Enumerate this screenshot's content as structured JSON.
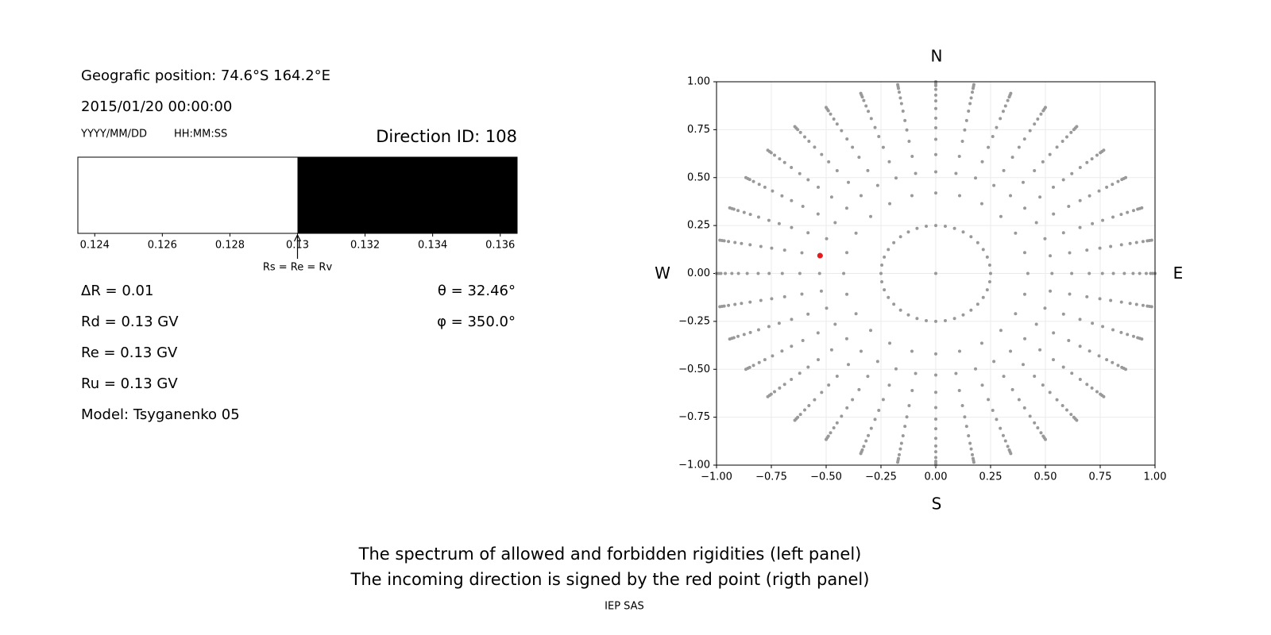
{
  "info": {
    "position": "Geografic position: 74.6°S 164.2°E",
    "datetime": "2015/01/20 00:00:00",
    "date_format": "YYYY/MM/DD",
    "time_format": "HH:MM:SS",
    "direction_id": "Direction ID: 108",
    "left_values": [
      "ΔR = 0.01",
      "Rd = 0.13 GV",
      "Re = 0.13 GV",
      "Ru = 0.13 GV",
      "Model: Tsyganenko 05"
    ],
    "right_values": [
      "θ = 32.46°",
      "φ = 350.0°"
    ]
  },
  "chart_data": [
    {
      "type": "spectrum",
      "xlim": [
        0.1235,
        0.1365
      ],
      "xticks": [
        0.124,
        0.126,
        0.128,
        0.13,
        0.132,
        0.134,
        0.136
      ],
      "segments": [
        {
          "color": "#ffffff",
          "range": [
            0.1235,
            0.13
          ]
        },
        {
          "color": "#000000",
          "range": [
            0.13,
            0.1365
          ]
        }
      ],
      "annotation": {
        "text": "Rs = Re = Rv",
        "x": 0.13
      }
    },
    {
      "type": "scatter",
      "xlim": [
        -1,
        1
      ],
      "ylim": [
        -1,
        1
      ],
      "grid": true,
      "xticks": [
        {
          "value": -1,
          "label": "−1.00"
        },
        {
          "value": -0.75,
          "label": "−0.75"
        },
        {
          "value": -0.5,
          "label": "−0.50"
        },
        {
          "value": -0.25,
          "label": "−0.25"
        },
        {
          "value": 0,
          "label": "0.00"
        },
        {
          "value": 0.25,
          "label": "0.25"
        },
        {
          "value": 0.5,
          "label": "0.50"
        },
        {
          "value": 0.75,
          "label": "0.75"
        },
        {
          "value": 1,
          "label": "1.00"
        }
      ],
      "yticks": [
        {
          "value": -1,
          "label": "−1.00"
        },
        {
          "value": -0.75,
          "label": "−0.75"
        },
        {
          "value": -0.5,
          "label": "−0.50"
        },
        {
          "value": -0.25,
          "label": "−0.25"
        },
        {
          "value": 0,
          "label": "0.00"
        },
        {
          "value": 0.25,
          "label": "0.25"
        },
        {
          "value": 0.5,
          "label": "0.50"
        },
        {
          "value": 0.75,
          "label": "0.75"
        },
        {
          "value": 1,
          "label": "1.00"
        }
      ],
      "compass": {
        "north": "N",
        "south": "S",
        "west": "W",
        "east": "E"
      },
      "polar_points": {
        "color": "#999999",
        "groups": [
          {
            "radii": [
              0
            ],
            "azimuths": [
              0
            ]
          },
          {
            "radii": [
              0.25
            ],
            "azimuths": [
              0,
              10,
              20,
              30,
              40,
              50,
              60,
              70,
              80,
              90,
              100,
              110,
              120,
              130,
              140,
              150,
              160,
              170,
              180,
              190,
              200,
              210,
              220,
              230,
              240,
              250,
              260,
              270,
              280,
              290,
              300,
              310,
              320,
              330,
              340,
              350
            ]
          },
          {
            "radii": [
              0.42
            ],
            "azimuths": [
              0,
              15,
              30,
              45,
              60,
              75,
              90,
              105,
              120,
              135,
              150,
              165,
              180,
              195,
              210,
              225,
              240,
              255,
              270,
              285,
              300,
              315,
              330,
              345
            ]
          },
          {
            "radii": [
              0.53,
              0.62,
              0.7,
              0.76,
              0.81,
              0.86,
              0.9,
              0.93,
              0.96,
              0.98,
              0.99,
              1
            ],
            "azimuths": [
              0,
              10,
              20,
              30,
              40,
              50,
              60,
              70,
              80,
              90,
              100,
              110,
              120,
              130,
              140,
              150,
              160,
              170,
              180,
              190,
              200,
              210,
              220,
              230,
              240,
              250,
              260,
              270,
              280,
              290,
              300,
              310,
              320,
              330,
              340,
              350
            ]
          }
        ]
      },
      "series": [
        {
          "color": "#e41a1c",
          "x": [
            -0.528
          ],
          "y": [
            0.093
          ]
        }
      ]
    }
  ],
  "caption": [
    "The spectrum of allowed and forbidden rigidities (left panel)",
    "The incoming direction is signed by the red point (rigth panel)"
  ],
  "footer": "IEP SAS"
}
